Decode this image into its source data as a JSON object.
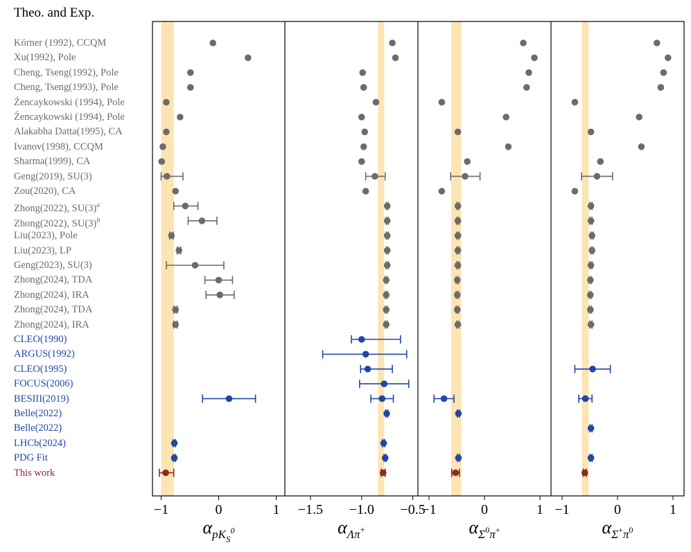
{
  "title": "Theo. and Exp.",
  "colors": {
    "theory": "#6b6b6b",
    "experiment": "#1f46a8",
    "this_work": "#8b2a2a",
    "band": "#fde4b3"
  },
  "chart_data": {
    "type": "scatter",
    "orientation": "horizontal error-bar (forest plot)",
    "rows": [
      {
        "label": "Körner (1992), CCQM",
        "group": "theory"
      },
      {
        "label": "Xu(1992), Pole",
        "group": "theory"
      },
      {
        "label": "Cheng, Tseng(1992), Pole",
        "group": "theory"
      },
      {
        "label": "Cheng, Tseng(1993), Pole",
        "group": "theory"
      },
      {
        "label": "Źencaykowski (1994), Pole",
        "group": "theory"
      },
      {
        "label": "Źencaykowski (1994), Pole",
        "group": "theory"
      },
      {
        "label": "Alakabha Datta(1995), CA",
        "group": "theory"
      },
      {
        "label": "Ivanov(1998), CCQM",
        "group": "theory"
      },
      {
        "label": "Sharma(1999), CA",
        "group": "theory"
      },
      {
        "label": "Geng(2019), SU(3)",
        "group": "theory"
      },
      {
        "label": "Zou(2020), CA",
        "group": "theory"
      },
      {
        "label": "Zhong(2022), SU(3)",
        "sup": "a",
        "group": "theory"
      },
      {
        "label": "Zhong(2022), SU(3)",
        "sup": "b",
        "group": "theory"
      },
      {
        "label": "Liu(2023), Pole",
        "group": "theory"
      },
      {
        "label": "Liu(2023), LP",
        "group": "theory"
      },
      {
        "label": "Geng(2023), SU(3)",
        "group": "theory"
      },
      {
        "label": "Zhong(2024), TDA",
        "group": "theory"
      },
      {
        "label": "Zhong(2024), IRA",
        "group": "theory"
      },
      {
        "label": "Zhong(2024), TDA",
        "group": "theory"
      },
      {
        "label": "Zhong(2024), IRA",
        "group": "theory"
      },
      {
        "label": "CLEO(1990)",
        "group": "experiment"
      },
      {
        "label": "ARGUS(1992)",
        "group": "experiment"
      },
      {
        "label": "CLEO(1995)",
        "group": "experiment"
      },
      {
        "label": "FOCUS(2006)",
        "group": "experiment"
      },
      {
        "label": "BESIII(2019)",
        "group": "experiment"
      },
      {
        "label": "Belle(2022)",
        "group": "experiment"
      },
      {
        "label": "Belle(2022)",
        "group": "experiment"
      },
      {
        "label": "LHCb(2024)",
        "group": "experiment"
      },
      {
        "label": "PDG Fit",
        "group": "experiment"
      },
      {
        "label": "This work",
        "group": "this_work"
      }
    ],
    "panels": [
      {
        "xlabel_base": "α",
        "xlabel_sub": "pK",
        "xlabel_subsub": "S",
        "xlabel_subsup": "0",
        "xlim": [
          -1.15,
          1.15
        ],
        "ticks": [
          -1,
          0,
          1
        ],
        "tick_labels": [
          "−1",
          "0",
          "1"
        ],
        "band": [
          -1.0,
          -0.78
        ],
        "points": [
          {
            "row": 0,
            "value": -0.1
          },
          {
            "row": 1,
            "value": 0.51
          },
          {
            "row": 2,
            "value": -0.49
          },
          {
            "row": 3,
            "value": -0.49
          },
          {
            "row": 4,
            "value": -0.91
          },
          {
            "row": 5,
            "value": -0.67
          },
          {
            "row": 6,
            "value": -0.91
          },
          {
            "row": 7,
            "value": -0.97
          },
          {
            "row": 8,
            "value": -0.99
          },
          {
            "row": 9,
            "value": -0.9,
            "err": [
              0.1,
              0.28
            ]
          },
          {
            "row": 10,
            "value": -0.75
          },
          {
            "row": 11,
            "value": -0.58,
            "err": [
              0.2,
              0.22
            ]
          },
          {
            "row": 12,
            "value": -0.29,
            "err": [
              0.24,
              0.26
            ]
          },
          {
            "row": 13,
            "value": -0.82,
            "err": [
              0.03,
              0.03
            ]
          },
          {
            "row": 14,
            "value": -0.69,
            "err": [
              0.03,
              0.03
            ]
          },
          {
            "row": 15,
            "value": -0.41,
            "err": [
              0.5,
              0.5
            ]
          },
          {
            "row": 16,
            "value": 0.0,
            "err": [
              0.24,
              0.24
            ]
          },
          {
            "row": 17,
            "value": 0.02,
            "err": [
              0.24,
              0.25
            ]
          },
          {
            "row": 18,
            "value": -0.75,
            "err": [
              0.03,
              0.03
            ]
          },
          {
            "row": 19,
            "value": -0.75,
            "err": [
              0.03,
              0.03
            ]
          },
          {
            "row": 24,
            "value": 0.18,
            "err": [
              0.46,
              0.46
            ]
          },
          {
            "row": 27,
            "value": -0.77,
            "err": [
              0.02,
              0.02
            ]
          },
          {
            "row": 28,
            "value": -0.77,
            "err": [
              0.02,
              0.02
            ]
          },
          {
            "row": 29,
            "value": -0.92,
            "err": [
              0.11,
              0.14
            ]
          }
        ]
      },
      {
        "xlabel_base": "α",
        "xlabel_sub": "Λπ",
        "xlabel_subsup": "+",
        "xlim": [
          -1.75,
          -0.45
        ],
        "ticks": [
          -1.5,
          -1.0,
          -0.5
        ],
        "tick_labels": [
          "−1.5",
          "−1.0",
          "−0.5"
        ],
        "band": [
          -0.84,
          -0.78
        ],
        "points": [
          {
            "row": 0,
            "value": -0.7
          },
          {
            "row": 1,
            "value": -0.67
          },
          {
            "row": 2,
            "value": -0.99
          },
          {
            "row": 3,
            "value": -0.98
          },
          {
            "row": 4,
            "value": -0.86
          },
          {
            "row": 5,
            "value": -1.0
          },
          {
            "row": 6,
            "value": -0.97
          },
          {
            "row": 7,
            "value": -0.98
          },
          {
            "row": 8,
            "value": -1.0
          },
          {
            "row": 9,
            "value": -0.87,
            "err": [
              0.09,
              0.1
            ]
          },
          {
            "row": 10,
            "value": -0.96
          },
          {
            "row": 11,
            "value": -0.75,
            "err": [
              0.01,
              0.01
            ]
          },
          {
            "row": 12,
            "value": -0.75,
            "err": [
              0.01,
              0.01
            ]
          },
          {
            "row": 13,
            "value": -0.75,
            "err": [
              0.01,
              0.01
            ]
          },
          {
            "row": 14,
            "value": -0.75,
            "err": [
              0.01,
              0.01
            ]
          },
          {
            "row": 15,
            "value": -0.75,
            "err": [
              0.01,
              0.01
            ]
          },
          {
            "row": 16,
            "value": -0.76,
            "err": [
              0.01,
              0.01
            ]
          },
          {
            "row": 17,
            "value": -0.76,
            "err": [
              0.01,
              0.01
            ]
          },
          {
            "row": 18,
            "value": -0.76,
            "err": [
              0.01,
              0.01
            ]
          },
          {
            "row": 19,
            "value": -0.76,
            "err": [
              0.01,
              0.01
            ]
          },
          {
            "row": 20,
            "value": -1.0,
            "err": [
              0.1,
              0.38
            ]
          },
          {
            "row": 21,
            "value": -0.96,
            "err": [
              0.42,
              0.4
            ]
          },
          {
            "row": 22,
            "value": -0.94,
            "err": [
              0.07,
              0.24
            ]
          },
          {
            "row": 23,
            "value": -0.78,
            "err": [
              0.24,
              0.24
            ]
          },
          {
            "row": 24,
            "value": -0.8,
            "err": [
              0.11,
              0.11
            ]
          },
          {
            "row": 25,
            "value": -0.755,
            "err": [
              0.01,
              0.01
            ]
          },
          {
            "row": 27,
            "value": -0.785,
            "err": [
              0.01,
              0.01
            ]
          },
          {
            "row": 28,
            "value": -0.77,
            "err": [
              0.01,
              0.01
            ]
          },
          {
            "row": 29,
            "value": -0.79,
            "err": [
              0.02,
              0.02
            ]
          }
        ]
      },
      {
        "xlabel_base": "α",
        "xlabel_sub": "Σ",
        "xlabel_subsup": "0",
        "xlabel_sub2": "π",
        "xlabel_sub2sup": "+",
        "xlim": [
          -1.2,
          1.2
        ],
        "ticks": [
          -1,
          0,
          1
        ],
        "tick_labels": [
          "−1",
          "0",
          "1"
        ],
        "band": [
          -0.6,
          -0.42
        ],
        "points": [
          {
            "row": 0,
            "value": 0.7
          },
          {
            "row": 1,
            "value": 0.9
          },
          {
            "row": 2,
            "value": 0.8
          },
          {
            "row": 3,
            "value": 0.76
          },
          {
            "row": 4,
            "value": -0.77
          },
          {
            "row": 5,
            "value": 0.39
          },
          {
            "row": 6,
            "value": -0.48
          },
          {
            "row": 7,
            "value": 0.43
          },
          {
            "row": 8,
            "value": -0.31
          },
          {
            "row": 9,
            "value": -0.35,
            "err": [
              0.26,
              0.27
            ]
          },
          {
            "row": 10,
            "value": -0.77
          },
          {
            "row": 11,
            "value": -0.48,
            "err": [
              0.02,
              0.02
            ]
          },
          {
            "row": 12,
            "value": -0.48,
            "err": [
              0.02,
              0.02
            ]
          },
          {
            "row": 13,
            "value": -0.48,
            "err": [
              0.02,
              0.02
            ]
          },
          {
            "row": 14,
            "value": -0.48,
            "err": [
              0.02,
              0.02
            ]
          },
          {
            "row": 15,
            "value": -0.48,
            "err": [
              0.02,
              0.02
            ]
          },
          {
            "row": 16,
            "value": -0.49,
            "err": [
              0.02,
              0.02
            ]
          },
          {
            "row": 17,
            "value": -0.49,
            "err": [
              0.02,
              0.02
            ]
          },
          {
            "row": 18,
            "value": -0.49,
            "err": [
              0.02,
              0.02
            ]
          },
          {
            "row": 19,
            "value": -0.48,
            "err": [
              0.02,
              0.02
            ]
          },
          {
            "row": 24,
            "value": -0.73,
            "err": [
              0.18,
              0.18
            ]
          },
          {
            "row": 25,
            "value": -0.47,
            "err": [
              0.02,
              0.02
            ]
          },
          {
            "row": 28,
            "value": -0.47,
            "err": [
              0.02,
              0.02
            ]
          },
          {
            "row": 29,
            "value": -0.52,
            "err": [
              0.07,
              0.07
            ]
          }
        ]
      },
      {
        "xlabel_base": "α",
        "xlabel_sub": "Σ",
        "xlabel_subsup": "+",
        "xlabel_sub2": "π",
        "xlabel_sub2sup": "0",
        "xlim": [
          -1.2,
          1.2
        ],
        "ticks": [
          -1,
          0,
          1
        ],
        "tick_labels": [
          "−1",
          "0",
          "1"
        ],
        "band": [
          -0.64,
          -0.52
        ],
        "points": [
          {
            "row": 0,
            "value": 0.71
          },
          {
            "row": 1,
            "value": 0.91
          },
          {
            "row": 2,
            "value": 0.83
          },
          {
            "row": 3,
            "value": 0.78
          },
          {
            "row": 4,
            "value": -0.77
          },
          {
            "row": 5,
            "value": 0.39
          },
          {
            "row": 6,
            "value": -0.48
          },
          {
            "row": 7,
            "value": 0.43
          },
          {
            "row": 8,
            "value": -0.31
          },
          {
            "row": 9,
            "value": -0.37,
            "err": [
              0.28,
              0.28
            ]
          },
          {
            "row": 10,
            "value": -0.77
          },
          {
            "row": 11,
            "value": -0.48,
            "err": [
              0.02,
              0.02
            ]
          },
          {
            "row": 12,
            "value": -0.48,
            "err": [
              0.02,
              0.02
            ]
          },
          {
            "row": 13,
            "value": -0.46,
            "err": [
              0.02,
              0.02
            ]
          },
          {
            "row": 14,
            "value": -0.46,
            "err": [
              0.02,
              0.02
            ]
          },
          {
            "row": 15,
            "value": -0.48,
            "err": [
              0.02,
              0.02
            ]
          },
          {
            "row": 16,
            "value": -0.49,
            "err": [
              0.02,
              0.02
            ]
          },
          {
            "row": 17,
            "value": -0.49,
            "err": [
              0.02,
              0.02
            ]
          },
          {
            "row": 18,
            "value": -0.49,
            "err": [
              0.02,
              0.02
            ]
          },
          {
            "row": 19,
            "value": -0.48,
            "err": [
              0.02,
              0.02
            ]
          },
          {
            "row": 22,
            "value": -0.45,
            "err": [
              0.32,
              0.32
            ]
          },
          {
            "row": 24,
            "value": -0.58,
            "err": [
              0.12,
              0.12
            ]
          },
          {
            "row": 26,
            "value": -0.48,
            "err": [
              0.02,
              0.02
            ]
          },
          {
            "row": 28,
            "value": -0.48,
            "err": [
              0.02,
              0.02
            ]
          },
          {
            "row": 29,
            "value": -0.59,
            "err": [
              0.03,
              0.03
            ]
          }
        ]
      }
    ]
  }
}
